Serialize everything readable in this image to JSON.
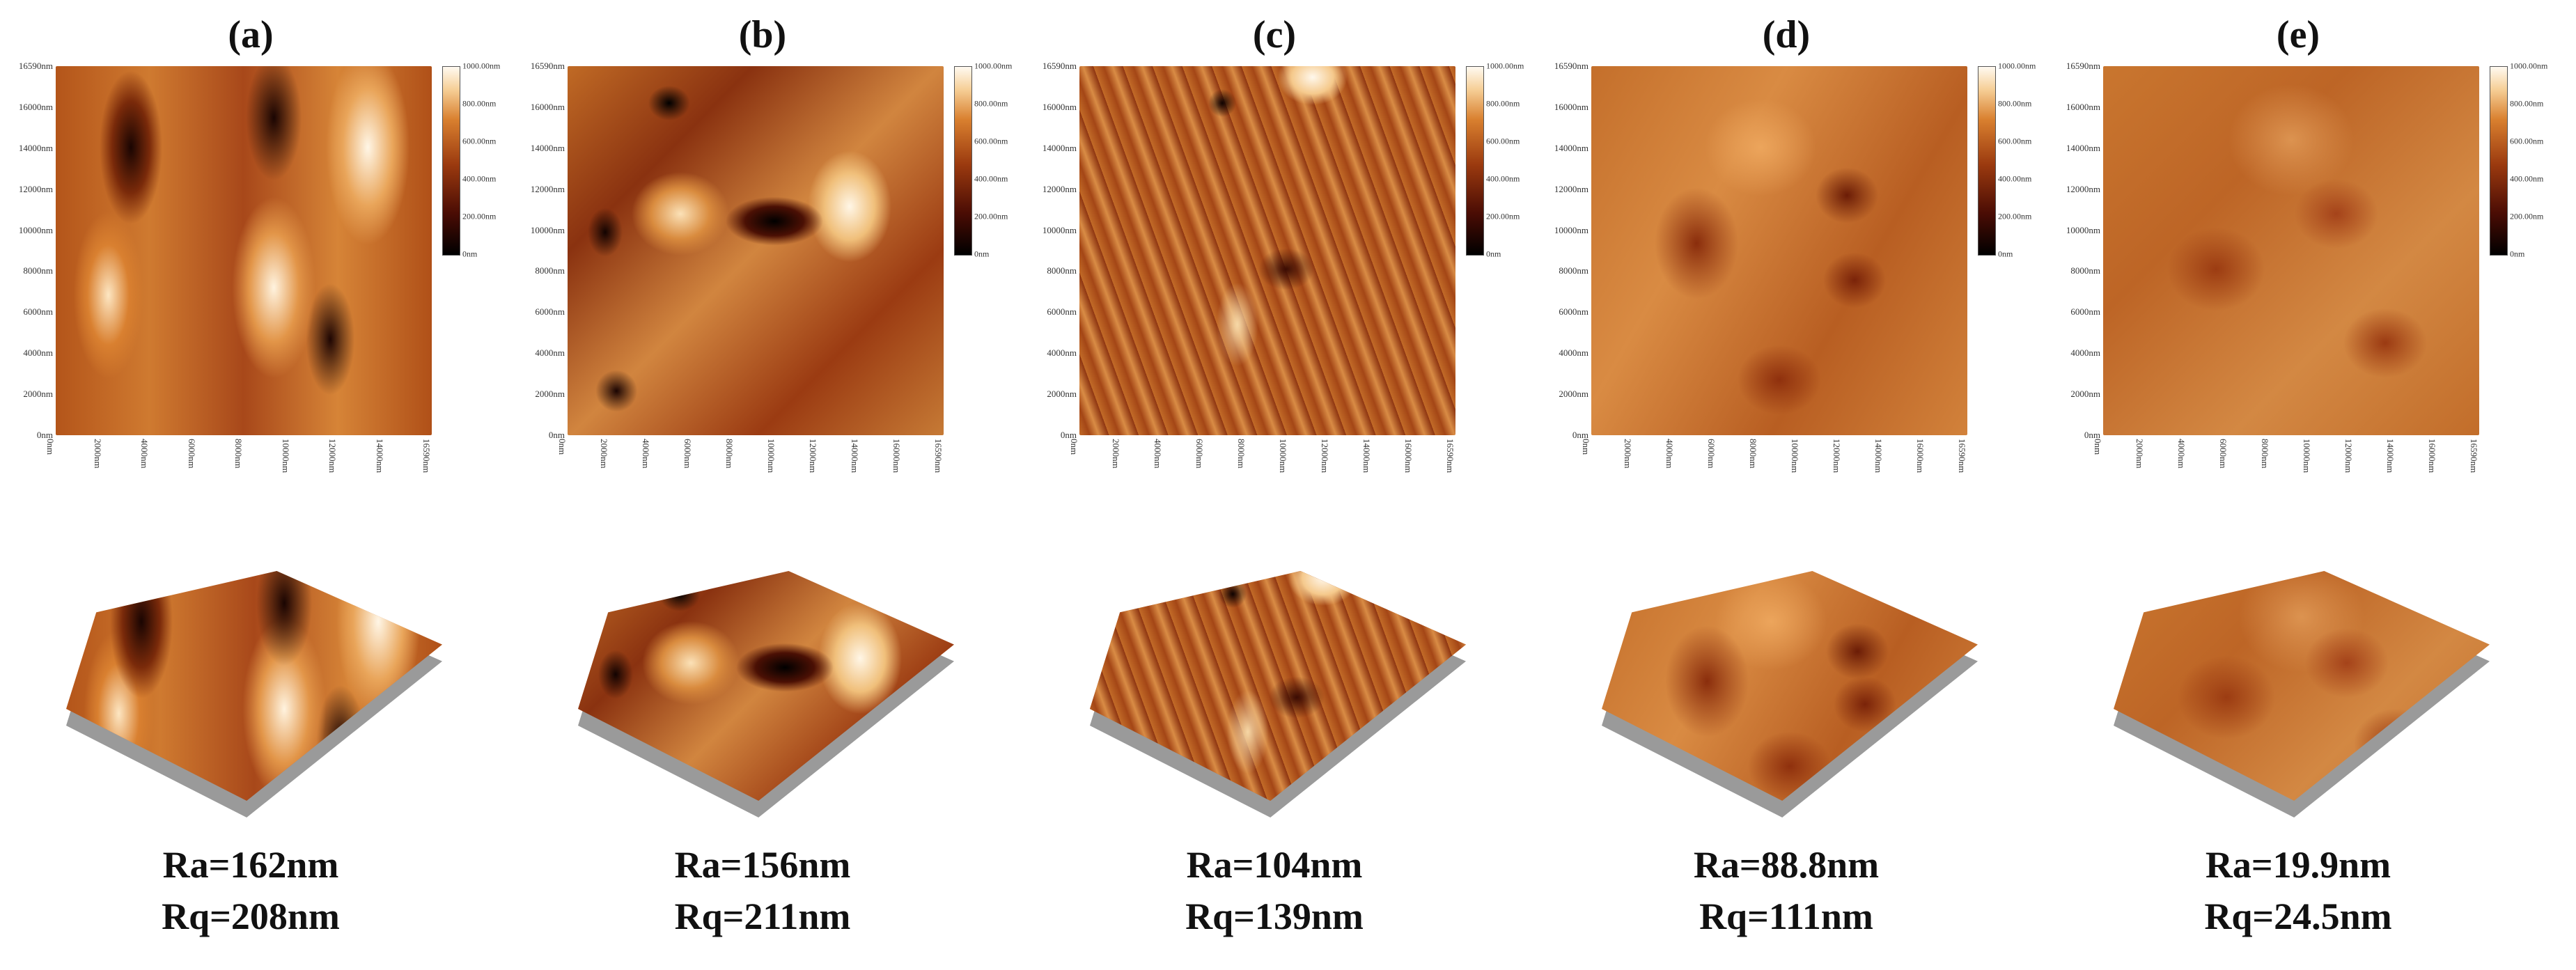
{
  "panels": [
    {
      "label": "(a)",
      "y_ticks": [
        "16590nm",
        "16000nm",
        "14000nm",
        "12000nm",
        "10000nm",
        "8000nm",
        "6000nm",
        "4000nm",
        "2000nm",
        "0nm"
      ],
      "x_ticks": [
        "0nm",
        "2000nm",
        "4000nm",
        "6000nm",
        "8000nm",
        "10000nm",
        "12000nm",
        "14000nm",
        "16590nm"
      ],
      "cbar_ticks": [
        "1000.00nm",
        "800.00nm",
        "600.00nm",
        "400.00nm",
        "200.00nm",
        "0nm"
      ],
      "ra": "Ra=162nm",
      "rq": "Rq=208nm"
    },
    {
      "label": "(b)",
      "y_ticks": [
        "16590nm",
        "16000nm",
        "14000nm",
        "12000nm",
        "10000nm",
        "8000nm",
        "6000nm",
        "4000nm",
        "2000nm",
        "0nm"
      ],
      "x_ticks": [
        "0nm",
        "2000nm",
        "4000nm",
        "6000nm",
        "8000nm",
        "10000nm",
        "12000nm",
        "14000nm",
        "16000nm",
        "16590nm"
      ],
      "cbar_ticks": [
        "1000.00nm",
        "800.00nm",
        "600.00nm",
        "400.00nm",
        "200.00nm",
        "0nm"
      ],
      "ra": "Ra=156nm",
      "rq": "Rq=211nm"
    },
    {
      "label": "(c)",
      "y_ticks": [
        "16590nm",
        "16000nm",
        "14000nm",
        "12000nm",
        "10000nm",
        "8000nm",
        "6000nm",
        "4000nm",
        "2000nm",
        "0nm"
      ],
      "x_ticks": [
        "0nm",
        "2000nm",
        "4000nm",
        "6000nm",
        "8000nm",
        "10000nm",
        "12000nm",
        "14000nm",
        "16000nm",
        "16590nm"
      ],
      "cbar_ticks": [
        "1000.00nm",
        "800.00nm",
        "600.00nm",
        "400.00nm",
        "200.00nm",
        "0nm"
      ],
      "ra": "Ra=104nm",
      "rq": "Rq=139nm"
    },
    {
      "label": "(d)",
      "y_ticks": [
        "16590nm",
        "16000nm",
        "14000nm",
        "12000nm",
        "10000nm",
        "8000nm",
        "6000nm",
        "4000nm",
        "2000nm",
        "0nm"
      ],
      "x_ticks": [
        "0nm",
        "2000nm",
        "4000nm",
        "6000nm",
        "8000nm",
        "10000nm",
        "12000nm",
        "14000nm",
        "16000nm",
        "16590nm"
      ],
      "cbar_ticks": [
        "1000.00nm",
        "800.00nm",
        "600.00nm",
        "400.00nm",
        "200.00nm",
        "0nm"
      ],
      "ra": "Ra=88.8nm",
      "rq": "Rq=111nm"
    },
    {
      "label": "(e)",
      "y_ticks": [
        "16590nm",
        "16000nm",
        "14000nm",
        "12000nm",
        "10000nm",
        "8000nm",
        "6000nm",
        "4000nm",
        "2000nm",
        "0nm"
      ],
      "x_ticks": [
        "0nm",
        "2000nm",
        "4000nm",
        "6000nm",
        "8000nm",
        "10000nm",
        "12000nm",
        "14000nm",
        "16000nm",
        "16590nm"
      ],
      "cbar_ticks": [
        "1000.00nm",
        "800.00nm",
        "600.00nm",
        "400.00nm",
        "200.00nm",
        "0nm"
      ],
      "ra": "Ra=19.9nm",
      "rq": "Rq=24.5nm"
    }
  ]
}
